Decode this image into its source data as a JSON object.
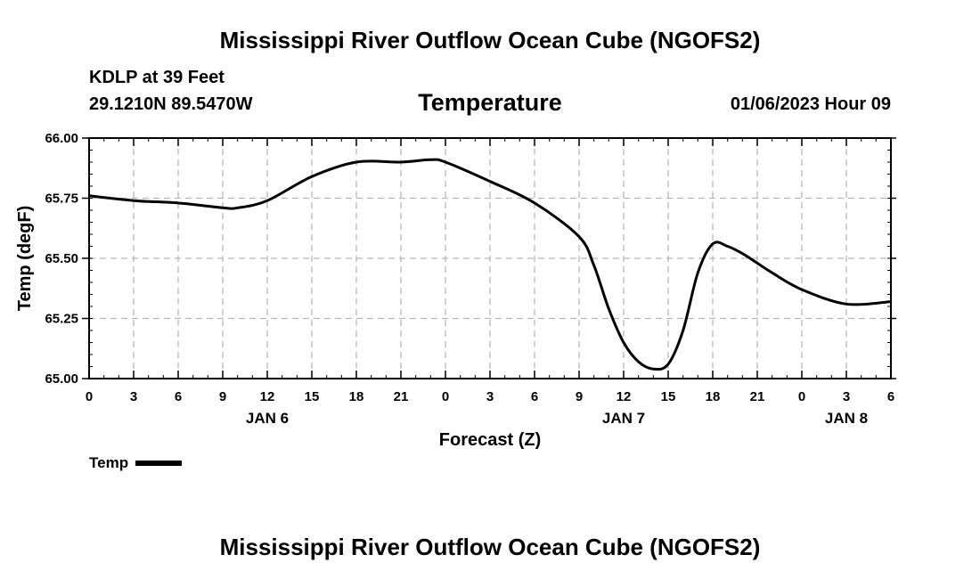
{
  "header": {
    "title": "Mississippi River Outflow Ocean Cube (NGOFS2)",
    "station": "KDLP at 39 Feet",
    "coords": "29.1210N  89.5470W",
    "parameter": "Temperature",
    "datetime": "01/06/2023 Hour 09"
  },
  "footer": {
    "title": "Mississippi River Outflow Ocean Cube (NGOFS2)"
  },
  "legend": {
    "label": "Temp"
  },
  "chart_data": {
    "type": "line",
    "title": "Temperature",
    "xlabel": "Forecast (Z)",
    "ylabel": "Temp (degF)",
    "xlim": [
      0,
      54
    ],
    "ylim": [
      65.0,
      66.0
    ],
    "yticks": [
      "66.00",
      "65.75",
      "65.50",
      "65.25",
      "65.00"
    ],
    "ytick_values": [
      66.0,
      65.75,
      65.5,
      65.25,
      65.0
    ],
    "xtick_labels": [
      "0",
      "3",
      "6",
      "9",
      "12",
      "15",
      "18",
      "21",
      "0",
      "3",
      "6",
      "9",
      "12",
      "15",
      "18",
      "21",
      "0",
      "3",
      "6"
    ],
    "day_labels": [
      {
        "label": "JAN 6",
        "x": 12
      },
      {
        "label": "JAN 7",
        "x": 36
      },
      {
        "label": "JAN 8",
        "x": 51
      }
    ],
    "grid": true,
    "line_color": "#000000",
    "series": [
      {
        "name": "Temp",
        "x": [
          0,
          3,
          6,
          9,
          10,
          12,
          15,
          18,
          21,
          23,
          24,
          27,
          30,
          33,
          34,
          35,
          36,
          37,
          38,
          39,
          40,
          41,
          42,
          43,
          44,
          45,
          46,
          48,
          51,
          54
        ],
        "y": [
          65.76,
          65.74,
          65.73,
          65.71,
          65.71,
          65.74,
          65.84,
          65.9,
          65.9,
          65.91,
          65.9,
          65.82,
          65.73,
          65.59,
          65.47,
          65.29,
          65.15,
          65.07,
          65.04,
          65.06,
          65.2,
          65.44,
          65.56,
          65.55,
          65.52,
          65.48,
          65.44,
          65.37,
          65.31,
          65.32
        ]
      }
    ]
  }
}
